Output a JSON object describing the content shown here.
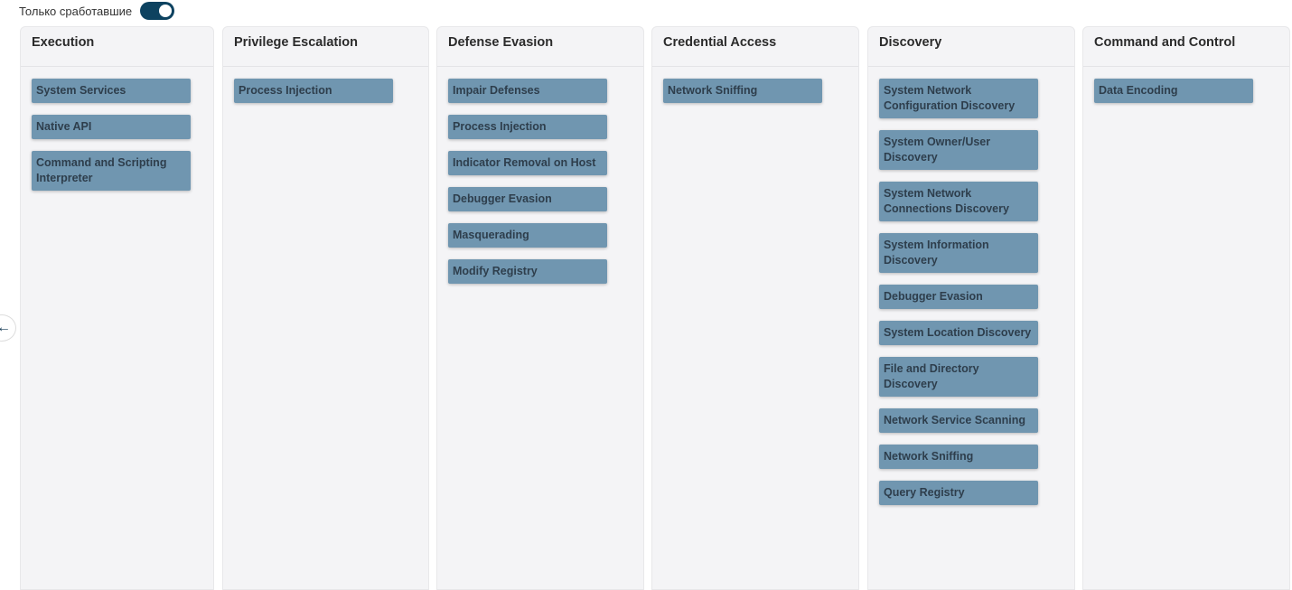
{
  "filter": {
    "label": "Только сработавшие",
    "toggle_on": true
  },
  "colors": {
    "toggle": "#0d4260",
    "tag": "#7096b0"
  },
  "back_icon": "arrow-left-icon",
  "columns": [
    {
      "title": "Execution",
      "items": [
        "System Services",
        "Native API",
        "Command and Scripting Interpreter"
      ]
    },
    {
      "title": "Privilege Escalation",
      "items": [
        "Process Injection"
      ]
    },
    {
      "title": "Defense Evasion",
      "items": [
        "Impair Defenses",
        "Process Injection",
        "Indicator Removal on Host",
        "Debugger Evasion",
        "Masquerading",
        "Modify Registry"
      ]
    },
    {
      "title": "Credential Access",
      "items": [
        "Network Sniffing"
      ]
    },
    {
      "title": "Discovery",
      "items": [
        "System Network Configuration Discovery",
        "System Owner/User Discovery",
        "System Network Connections Discovery",
        "System Information Discovery",
        "Debugger Evasion",
        "System Location Discovery",
        "File and Directory Discovery",
        "Network Service Scanning",
        "Network Sniffing",
        "Query Registry"
      ]
    },
    {
      "title": "Command and Control",
      "items": [
        "Data Encoding"
      ]
    }
  ]
}
